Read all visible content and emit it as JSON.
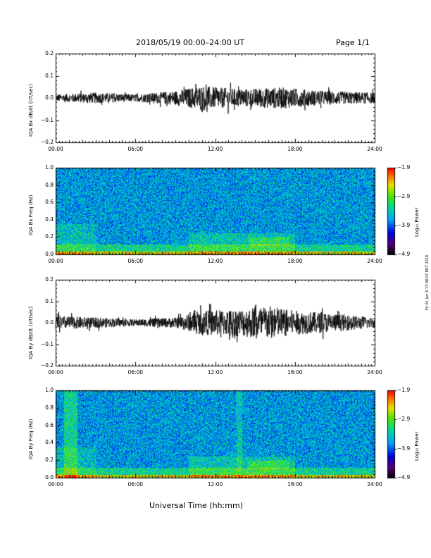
{
  "header": {
    "date_range": "2018/05/19  00:00–24:00 UT",
    "page": "Page 1/1"
  },
  "footer": {
    "xlabel": "Universal Time (hh:mm)",
    "side_note": "Fri 01 Jun 8 17:08:07 EDT 2018"
  },
  "chart_data": [
    {
      "type": "line",
      "ylabel": "IQA Bx dB/dt (nT/sec)",
      "xticks": [
        "00:00",
        "06:00",
        "12:00",
        "18:00",
        "24:00"
      ],
      "yticks": [
        "0.2",
        "0.1",
        "0.0",
        "−0.1",
        "−0.2"
      ],
      "ylim": [
        -0.2,
        0.2
      ],
      "xlim_hours": [
        0,
        24
      ],
      "series": [
        {
          "values": [
            {
              "x": 0,
              "y_range": [
                -0.03,
                0.02
              ]
            },
            {
              "x": 3,
              "y_range": [
                -0.03,
                0.03
              ]
            },
            {
              "x": 6,
              "y_range": [
                -0.02,
                0.02
              ]
            },
            {
              "x": 9,
              "y_range": [
                -0.04,
                0.04
              ]
            },
            {
              "x": 11,
              "y_range": [
                -0.07,
                0.07
              ]
            },
            {
              "x": 12,
              "y_range": [
                -0.06,
                0.06
              ]
            },
            {
              "x": 14,
              "y_range": [
                -0.05,
                0.05
              ]
            },
            {
              "x": 17,
              "y_range": [
                -0.06,
                0.06
              ]
            },
            {
              "x": 20,
              "y_range": [
                -0.04,
                0.04
              ]
            },
            {
              "x": 24,
              "y_range": [
                -0.03,
                0.03
              ]
            }
          ]
        }
      ]
    },
    {
      "type": "heatmap",
      "ylabel": "IQA Bx Freq (Hz)",
      "xticks": [
        "00:00",
        "06:00",
        "12:00",
        "18:00",
        "24:00"
      ],
      "yticks": [
        "1.0",
        "0.8",
        "0.6",
        "0.4",
        "0.2",
        "0.0"
      ],
      "ylim": [
        0,
        1.0
      ],
      "colorbar": {
        "label": "Log₁₀ Power",
        "ticks": [
          "−1.9",
          "−2.9",
          "−3.9",
          "−4.9"
        ],
        "range": [
          -4.9,
          -1.9
        ]
      }
    },
    {
      "type": "line",
      "ylabel": "IQA By dB/dt (nT/sec)",
      "xticks": [
        "00:00",
        "06:00",
        "12:00",
        "18:00",
        "24:00"
      ],
      "yticks": [
        "0.2",
        "0.1",
        "0.0",
        "−0.1",
        "−0.2"
      ],
      "ylim": [
        -0.2,
        0.2
      ],
      "xlim_hours": [
        0,
        24
      ],
      "series": [
        {
          "values": [
            {
              "x": 0,
              "y_range": [
                -0.04,
                0.04
              ]
            },
            {
              "x": 3,
              "y_range": [
                -0.03,
                0.03
              ]
            },
            {
              "x": 6,
              "y_range": [
                -0.02,
                0.02
              ]
            },
            {
              "x": 9,
              "y_range": [
                -0.03,
                0.03
              ]
            },
            {
              "x": 11,
              "y_range": [
                -0.07,
                0.07
              ]
            },
            {
              "x": 14,
              "y_range": [
                -0.08,
                0.08
              ]
            },
            {
              "x": 16,
              "y_range": [
                -0.1,
                0.1
              ]
            },
            {
              "x": 18,
              "y_range": [
                -0.07,
                0.07
              ]
            },
            {
              "x": 20,
              "y_range": [
                -0.06,
                0.06
              ]
            },
            {
              "x": 24,
              "y_range": [
                -0.03,
                0.03
              ]
            }
          ]
        }
      ]
    },
    {
      "type": "heatmap",
      "ylabel": "IQA By Freq (Hz)",
      "xticks": [
        "00:00",
        "06:00",
        "12:00",
        "18:00",
        "24:00"
      ],
      "yticks": [
        "1.0",
        "0.8",
        "0.6",
        "0.4",
        "0.2",
        "0.0"
      ],
      "ylim": [
        0,
        1.0
      ],
      "colorbar": {
        "label": "Log₁₀ Power",
        "ticks": [
          "−1.9",
          "−2.9",
          "−3.9",
          "−4.9"
        ],
        "range": [
          -4.9,
          -1.9
        ]
      }
    }
  ]
}
